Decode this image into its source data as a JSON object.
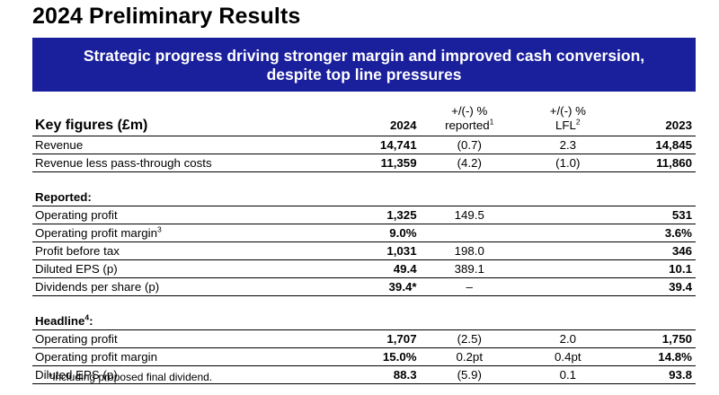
{
  "title": "2024 Preliminary Results",
  "banner": {
    "line1": "Strategic progress driving stronger margin and improved cash conversion,",
    "line2": "despite top line pressures"
  },
  "header": {
    "label": "Key figures (£m)",
    "col_2024": "2024",
    "col_reported_line1": "+/(-) %",
    "col_reported_line2": "reported",
    "col_reported_sup": "1",
    "col_lfl_line1": "+/(-) %",
    "col_lfl_line2": "LFL",
    "col_lfl_sup": "2",
    "col_2023": "2023"
  },
  "top_rows": [
    {
      "label": "Revenue",
      "v2024": "14,741",
      "reported": "(0.7)",
      "lfl": "2.3",
      "v2023": "14,845"
    },
    {
      "label": "Revenue less pass-through costs",
      "v2024": "11,359",
      "reported": "(4.2)",
      "lfl": "(1.0)",
      "v2023": "11,860"
    }
  ],
  "reported_section": {
    "heading": "Reported:",
    "rows": [
      {
        "label": "Operating profit",
        "sup": "",
        "v2024": "1,325",
        "reported": "149.5",
        "lfl": "",
        "v2023": "531"
      },
      {
        "label": "Operating profit margin",
        "sup": "3",
        "v2024": "9.0%",
        "reported": "",
        "lfl": "",
        "v2023": "3.6%"
      },
      {
        "label": "Profit before tax",
        "sup": "",
        "v2024": "1,031",
        "reported": "198.0",
        "lfl": "",
        "v2023": "346"
      },
      {
        "label": "Diluted EPS (p)",
        "sup": "",
        "v2024": "49.4",
        "reported": "389.1",
        "lfl": "",
        "v2023": "10.1"
      },
      {
        "label": "Dividends per share (p)",
        "sup": "",
        "v2024": "39.4*",
        "reported": "–",
        "lfl": "",
        "v2023": "39.4"
      }
    ]
  },
  "headline_section": {
    "heading": "Headline",
    "heading_sup": "4",
    "heading_suffix": ":",
    "rows": [
      {
        "label": "Operating profit",
        "v2024": "1,707",
        "reported": "(2.5)",
        "lfl": "2.0",
        "v2023": "1,750"
      },
      {
        "label": "Operating profit margin",
        "v2024": "15.0%",
        "reported": "0.2pt",
        "lfl": "0.4pt",
        "v2023": "14.8%"
      },
      {
        "label": "Diluted EPS (p)",
        "v2024": "88.3",
        "reported": "(5.9)",
        "lfl": "0.1",
        "v2023": "93.8"
      }
    ]
  },
  "footnote": "*including proposed final dividend."
}
